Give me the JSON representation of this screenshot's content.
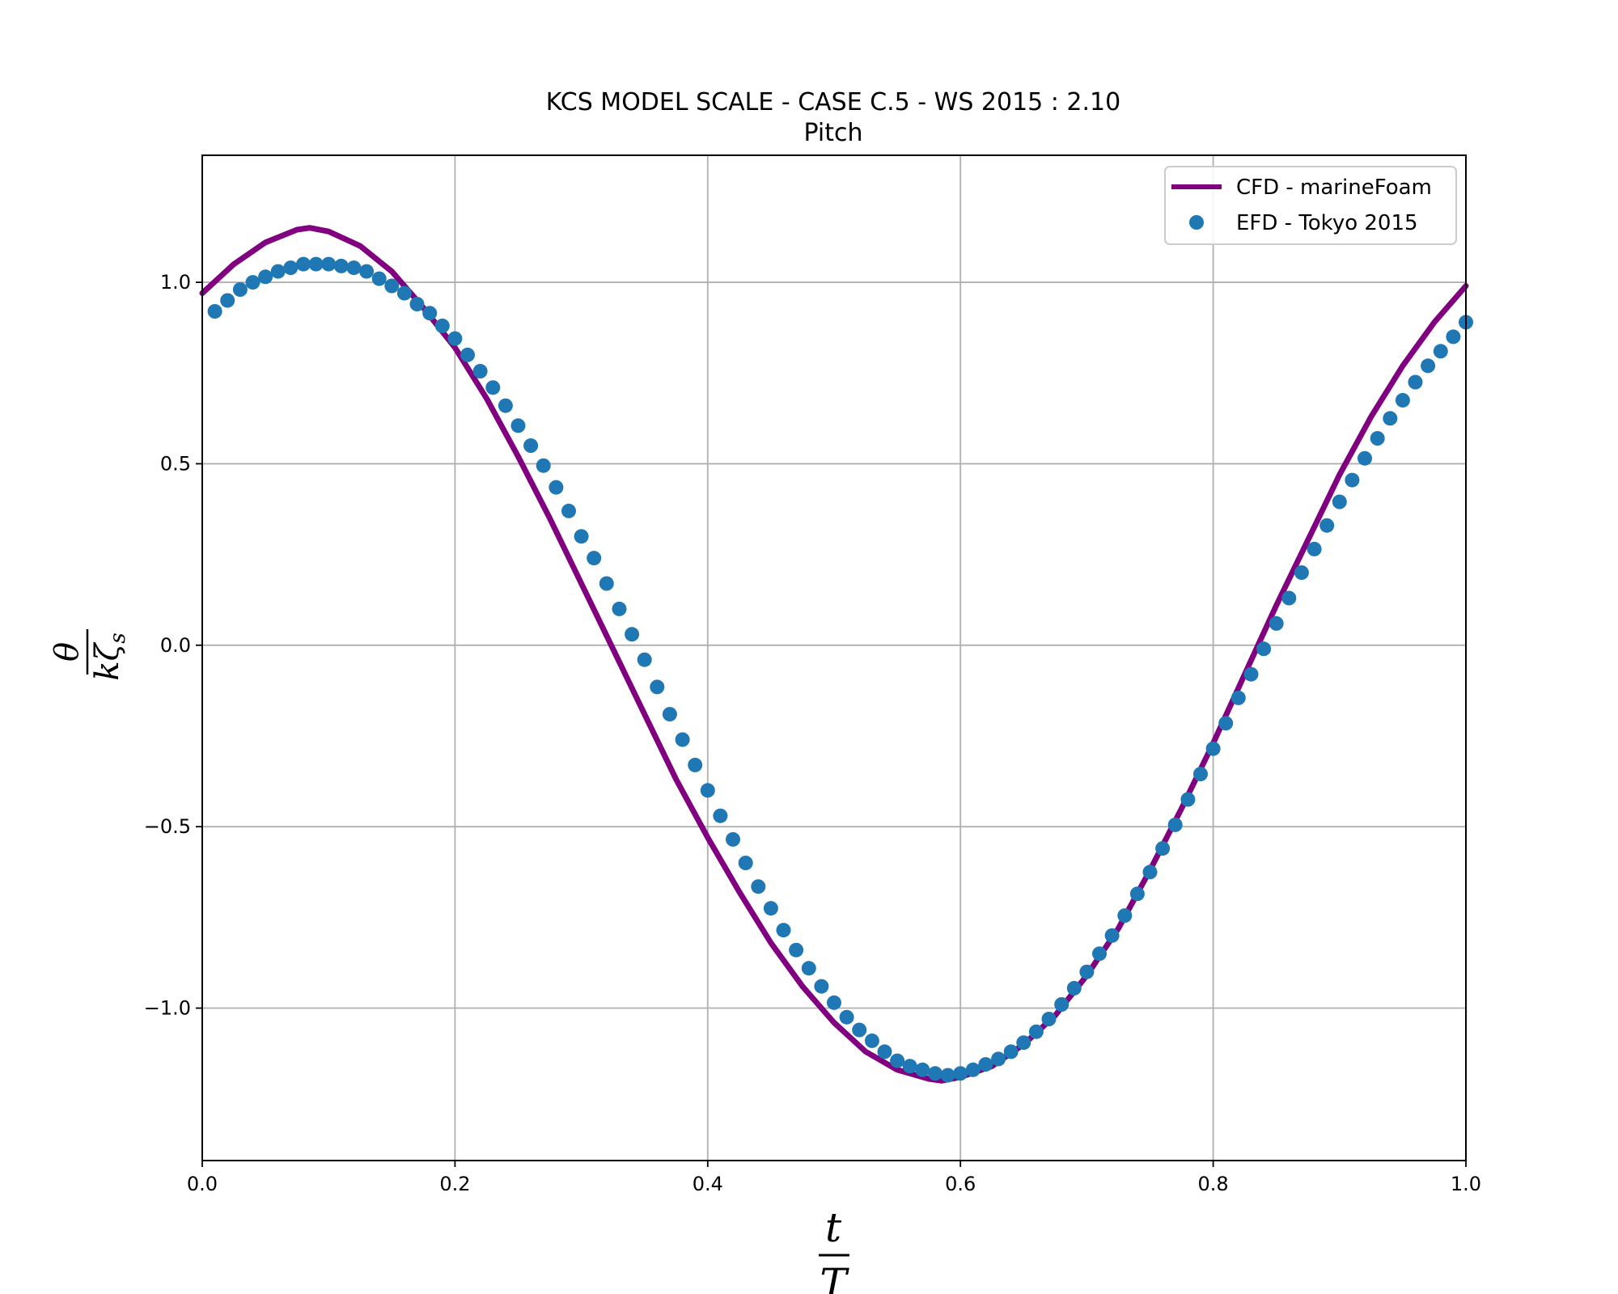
{
  "chart_data": {
    "type": "line",
    "title": "KCS MODEL SCALE - CASE C.5 - WS 2015 : 2.10",
    "subtitle": "Pitch",
    "xlabel": {
      "numerator": "t",
      "denominator": "T"
    },
    "ylabel": {
      "numerator": "θ",
      "denominator_main": "kζ",
      "denominator_sub": "s"
    },
    "xlim": [
      0.0,
      1.0
    ],
    "ylim": [
      -1.42,
      1.35
    ],
    "xticks": [
      0.0,
      0.2,
      0.4,
      0.6,
      0.8,
      1.0
    ],
    "xtick_labels": [
      "0.0",
      "0.2",
      "0.4",
      "0.6",
      "0.8",
      "1.0"
    ],
    "yticks": [
      -1.0,
      -0.5,
      0.0,
      0.5,
      1.0
    ],
    "ytick_labels": [
      "−1.0",
      "−0.5",
      "0.0",
      "0.5",
      "1.0"
    ],
    "grid": true,
    "legend_position": "top-right",
    "series": [
      {
        "name": "CFD - marineFoam",
        "kind": "line",
        "color": "#800080",
        "x": [
          0.0,
          0.025,
          0.05,
          0.075,
          0.085,
          0.1,
          0.125,
          0.15,
          0.175,
          0.2,
          0.225,
          0.25,
          0.275,
          0.3,
          0.325,
          0.35,
          0.375,
          0.4,
          0.425,
          0.45,
          0.475,
          0.5,
          0.525,
          0.55,
          0.575,
          0.585,
          0.6,
          0.625,
          0.65,
          0.675,
          0.7,
          0.725,
          0.75,
          0.775,
          0.8,
          0.825,
          0.85,
          0.875,
          0.9,
          0.925,
          0.95,
          0.975,
          1.0
        ],
        "y": [
          0.97,
          1.05,
          1.11,
          1.145,
          1.15,
          1.14,
          1.1,
          1.03,
          0.93,
          0.82,
          0.68,
          0.52,
          0.35,
          0.17,
          -0.01,
          -0.19,
          -0.37,
          -0.53,
          -0.68,
          -0.82,
          -0.94,
          -1.04,
          -1.12,
          -1.17,
          -1.195,
          -1.2,
          -1.19,
          -1.16,
          -1.1,
          -1.02,
          -0.91,
          -0.78,
          -0.62,
          -0.45,
          -0.27,
          -0.08,
          0.11,
          0.29,
          0.47,
          0.63,
          0.77,
          0.89,
          0.99
        ]
      },
      {
        "name": "EFD - Tokyo 2015",
        "kind": "scatter",
        "color": "#1f77b4",
        "x": [
          0.01,
          0.02,
          0.03,
          0.04,
          0.05,
          0.06,
          0.07,
          0.08,
          0.09,
          0.1,
          0.11,
          0.12,
          0.13,
          0.14,
          0.15,
          0.16,
          0.17,
          0.18,
          0.19,
          0.2,
          0.21,
          0.22,
          0.23,
          0.24,
          0.25,
          0.26,
          0.27,
          0.28,
          0.29,
          0.3,
          0.31,
          0.32,
          0.33,
          0.34,
          0.35,
          0.36,
          0.37,
          0.38,
          0.39,
          0.4,
          0.41,
          0.42,
          0.43,
          0.44,
          0.45,
          0.46,
          0.47,
          0.48,
          0.49,
          0.5,
          0.51,
          0.52,
          0.53,
          0.54,
          0.55,
          0.56,
          0.57,
          0.58,
          0.59,
          0.6,
          0.61,
          0.62,
          0.63,
          0.64,
          0.65,
          0.66,
          0.67,
          0.68,
          0.69,
          0.7,
          0.71,
          0.72,
          0.73,
          0.74,
          0.75,
          0.76,
          0.77,
          0.78,
          0.79,
          0.8,
          0.81,
          0.82,
          0.83,
          0.84,
          0.85,
          0.86,
          0.87,
          0.88,
          0.89,
          0.9,
          0.91,
          0.92,
          0.93,
          0.94,
          0.95,
          0.96,
          0.97,
          0.98,
          0.99,
          1.0
        ],
        "y": [
          0.92,
          0.95,
          0.98,
          1.0,
          1.015,
          1.03,
          1.04,
          1.05,
          1.05,
          1.05,
          1.045,
          1.04,
          1.03,
          1.01,
          0.99,
          0.97,
          0.94,
          0.915,
          0.88,
          0.845,
          0.8,
          0.755,
          0.71,
          0.66,
          0.605,
          0.55,
          0.495,
          0.435,
          0.37,
          0.3,
          0.24,
          0.17,
          0.1,
          0.03,
          -0.04,
          -0.115,
          -0.19,
          -0.26,
          -0.33,
          -0.4,
          -0.47,
          -0.535,
          -0.6,
          -0.665,
          -0.725,
          -0.785,
          -0.84,
          -0.89,
          -0.94,
          -0.985,
          -1.025,
          -1.06,
          -1.09,
          -1.12,
          -1.145,
          -1.16,
          -1.17,
          -1.18,
          -1.185,
          -1.18,
          -1.17,
          -1.155,
          -1.14,
          -1.12,
          -1.095,
          -1.065,
          -1.03,
          -0.99,
          -0.945,
          -0.9,
          -0.85,
          -0.8,
          -0.745,
          -0.685,
          -0.625,
          -0.56,
          -0.495,
          -0.425,
          -0.355,
          -0.285,
          -0.215,
          -0.145,
          -0.08,
          -0.01,
          0.06,
          0.13,
          0.2,
          0.265,
          0.33,
          0.395,
          0.455,
          0.515,
          0.57,
          0.625,
          0.675,
          0.725,
          0.77,
          0.81,
          0.85,
          0.89
        ]
      }
    ]
  }
}
